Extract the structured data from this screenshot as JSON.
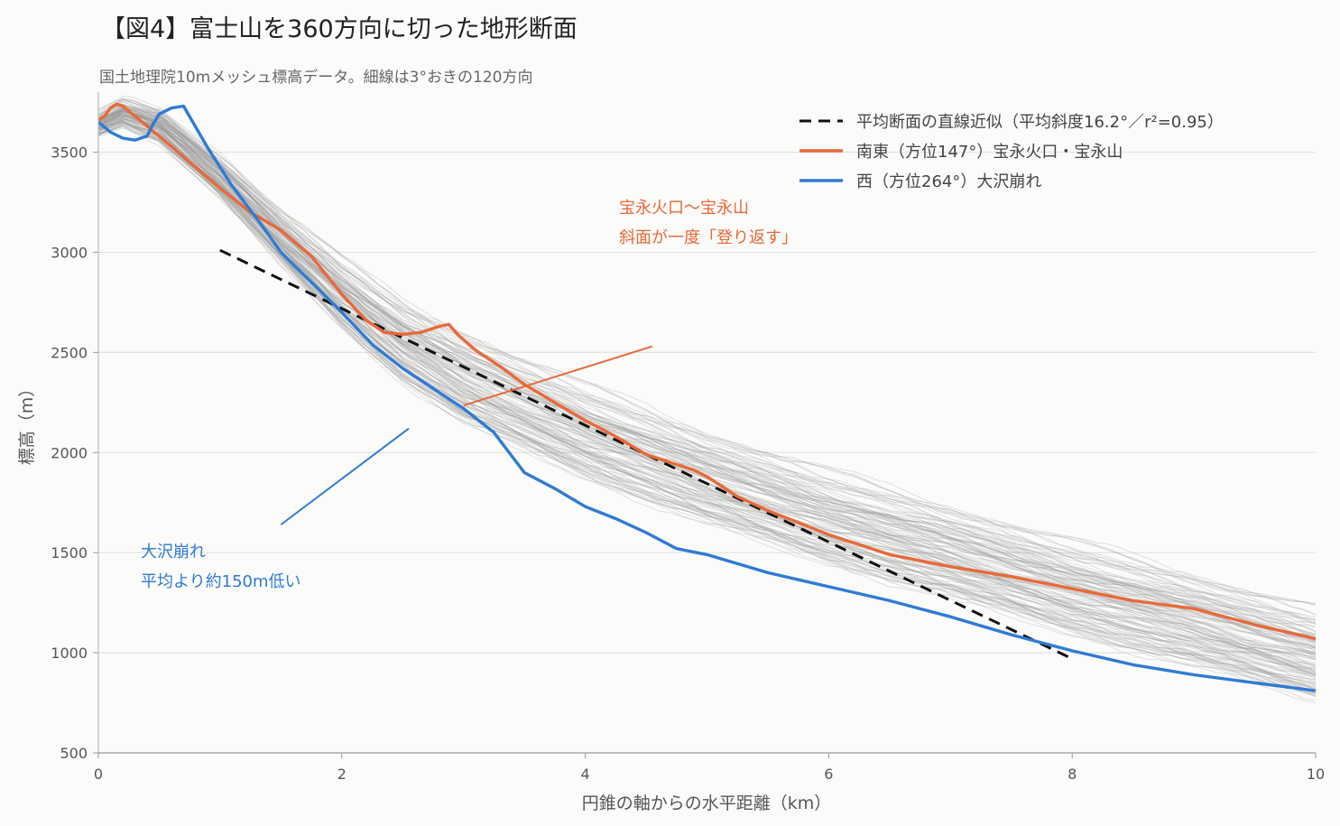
{
  "header": {
    "title": "【図4】富士山を360方向に切った地形断面",
    "subtitle": "国土地理院10mメッシュ標高データ。細線は3°おきの120方向"
  },
  "colors": {
    "southeast": "#e8693a",
    "west": "#2f7bd3",
    "fit": "#111111",
    "thin": "#9a9a9a",
    "grid": "#e2e2e2"
  },
  "chart_data": {
    "type": "line",
    "title": "【図4】富士山を360方向に切った地形断面",
    "subtitle": "国土地理院10mメッシュ標高データ。細線は3°おきの120方向",
    "xlabel": "円錐の軸からの水平距離（km）",
    "ylabel": "標高（m）",
    "xlim": [
      0,
      10
    ],
    "ylim": [
      500,
      3800
    ],
    "xticks": [
      0,
      2,
      4,
      6,
      8,
      10
    ],
    "yticks": [
      500,
      1000,
      1500,
      2000,
      2500,
      3000,
      3500
    ],
    "grid": "horizontal",
    "legend_position": "top-right",
    "thin_profiles_count": 120,
    "series": [
      {
        "name": "平均断面の直線近似（平均斜度16.2°／r²=0.95）",
        "style": "dashed",
        "x": [
          1.0,
          8.0
        ],
        "y": [
          3010,
          970
        ]
      },
      {
        "name": "南東（方位147°）宝永火口・宝永山",
        "x": [
          0,
          0.05,
          0.1,
          0.15,
          0.2,
          0.3,
          0.5,
          0.75,
          1.0,
          1.25,
          1.5,
          1.75,
          2.0,
          2.2,
          2.35,
          2.5,
          2.65,
          2.8,
          2.88,
          2.95,
          3.1,
          3.3,
          3.5,
          3.75,
          4.0,
          4.25,
          4.5,
          4.75,
          4.9,
          5.0,
          5.25,
          5.5,
          6.0,
          6.5,
          7.0,
          7.5,
          8.0,
          8.5,
          9.0,
          9.5,
          10.0
        ],
        "y": [
          3660,
          3680,
          3720,
          3740,
          3730,
          3680,
          3580,
          3450,
          3320,
          3200,
          3110,
          2980,
          2790,
          2660,
          2600,
          2590,
          2600,
          2630,
          2640,
          2590,
          2510,
          2430,
          2340,
          2250,
          2160,
          2080,
          1990,
          1940,
          1910,
          1880,
          1780,
          1710,
          1590,
          1490,
          1430,
          1380,
          1320,
          1260,
          1220,
          1140,
          1070
        ]
      },
      {
        "name": "西（方位264°）大沢崩れ",
        "x": [
          0,
          0.1,
          0.2,
          0.3,
          0.4,
          0.45,
          0.5,
          0.6,
          0.7,
          0.9,
          1.1,
          1.3,
          1.5,
          1.75,
          2.0,
          2.25,
          2.5,
          2.75,
          3.0,
          3.25,
          3.5,
          3.75,
          4.0,
          4.25,
          4.5,
          4.75,
          5.0,
          5.5,
          6.0,
          6.5,
          7.0,
          7.5,
          8.0,
          8.5,
          9.0,
          9.5,
          10.0
        ],
        "y": [
          3650,
          3600,
          3570,
          3560,
          3580,
          3640,
          3690,
          3720,
          3730,
          3520,
          3330,
          3170,
          3000,
          2850,
          2700,
          2540,
          2420,
          2320,
          2220,
          2100,
          1900,
          1820,
          1730,
          1670,
          1600,
          1520,
          1490,
          1400,
          1330,
          1260,
          1180,
          1090,
          1010,
          940,
          890,
          850,
          810
        ]
      }
    ],
    "annotations": [
      {
        "text": [
          "宝永火口〜宝永山",
          "斜面が一度「登り返す」"
        ],
        "color": "#e8693a",
        "arrow_from": [
          4.55,
          2530
        ],
        "arrow_to": [
          3.0,
          2235
        ]
      },
      {
        "text": [
          "大沢崩れ",
          "平均より約150m低い"
        ],
        "color": "#2f7bd3",
        "arrow_from": [
          2.55,
          2120
        ],
        "arrow_to": [
          1.5,
          1640
        ]
      }
    ]
  }
}
